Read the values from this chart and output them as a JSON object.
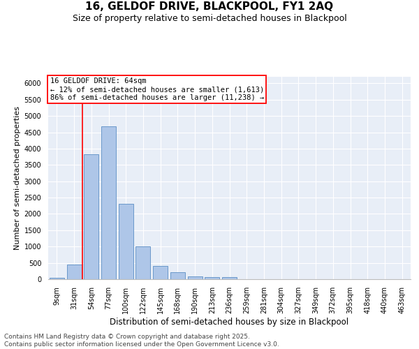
{
  "title": "16, GELDOF DRIVE, BLACKPOOL, FY1 2AQ",
  "subtitle": "Size of property relative to semi-detached houses in Blackpool",
  "xlabel": "Distribution of semi-detached houses by size in Blackpool",
  "ylabel": "Number of semi-detached properties",
  "categories": [
    "9sqm",
    "31sqm",
    "54sqm",
    "77sqm",
    "100sqm",
    "122sqm",
    "145sqm",
    "168sqm",
    "190sqm",
    "213sqm",
    "236sqm",
    "259sqm",
    "281sqm",
    "304sqm",
    "327sqm",
    "349sqm",
    "372sqm",
    "395sqm",
    "418sqm",
    "440sqm",
    "463sqm"
  ],
  "values": [
    50,
    440,
    3820,
    4680,
    2310,
    1000,
    400,
    210,
    90,
    70,
    65,
    0,
    0,
    0,
    0,
    0,
    0,
    0,
    0,
    0,
    0
  ],
  "bar_color": "#aec6e8",
  "bar_edge_color": "#5b8ec4",
  "background_color": "#e8eef7",
  "grid_color": "#ffffff",
  "ylim": [
    0,
    6200
  ],
  "yticks": [
    0,
    500,
    1000,
    1500,
    2000,
    2500,
    3000,
    3500,
    4000,
    4500,
    5000,
    5500,
    6000
  ],
  "annotation_text_1": "16 GELDOF DRIVE: 64sqm",
  "annotation_text_2": "← 12% of semi-detached houses are smaller (1,613)",
  "annotation_text_3": "86% of semi-detached houses are larger (11,238) →",
  "footer_line1": "Contains HM Land Registry data © Crown copyright and database right 2025.",
  "footer_line2": "Contains public sector information licensed under the Open Government Licence v3.0.",
  "title_fontsize": 11,
  "subtitle_fontsize": 9,
  "xlabel_fontsize": 8.5,
  "ylabel_fontsize": 8,
  "tick_fontsize": 7,
  "annotation_fontsize": 7.5,
  "footer_fontsize": 6.5,
  "vline_index": 1.5
}
